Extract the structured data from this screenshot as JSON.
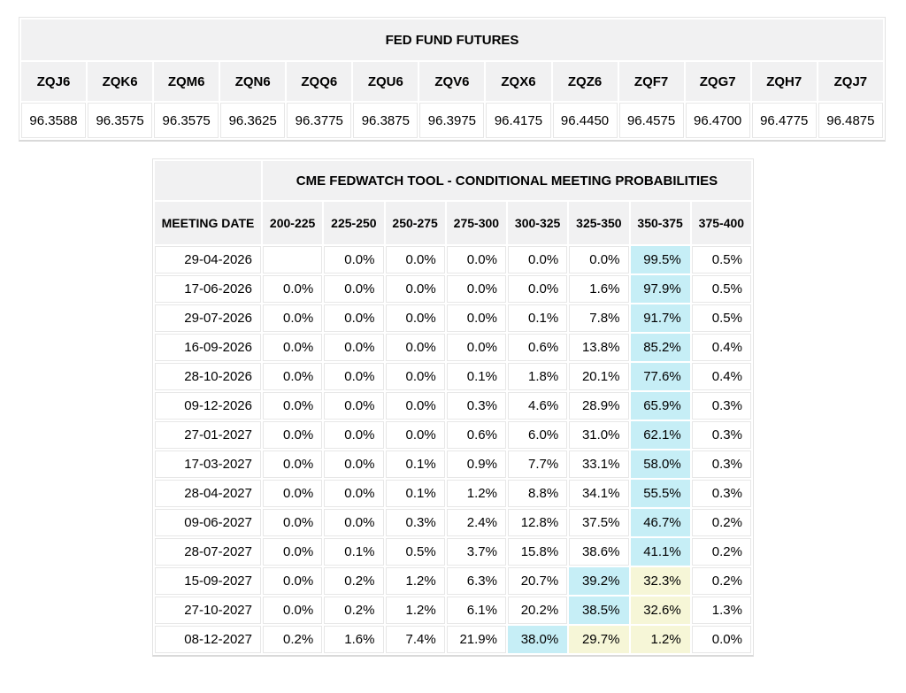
{
  "futures": {
    "title": "FED FUND FUTURES",
    "contracts": [
      "ZQJ6",
      "ZQK6",
      "ZQM6",
      "ZQN6",
      "ZQQ6",
      "ZQU6",
      "ZQV6",
      "ZQX6",
      "ZQZ6",
      "ZQF7",
      "ZQG7",
      "ZQH7",
      "ZQJ7"
    ],
    "prices": [
      "96.3588",
      "96.3575",
      "96.3575",
      "96.3625",
      "96.3775",
      "96.3875",
      "96.3975",
      "96.4175",
      "96.4450",
      "96.4575",
      "96.4700",
      "96.4775",
      "96.4875"
    ]
  },
  "fedwatch": {
    "title": "CME FEDWATCH TOOL - CONDITIONAL MEETING PROBABILITIES",
    "date_header": "MEETING DATE",
    "rate_headers": [
      "200-225",
      "225-250",
      "250-275",
      "275-300",
      "300-325",
      "325-350",
      "350-375",
      "375-400"
    ],
    "rows": [
      {
        "date": "29-04-2026",
        "values": [
          "",
          "0.0%",
          "0.0%",
          "0.0%",
          "0.0%",
          "0.0%",
          "99.5%",
          "0.5%"
        ],
        "cyan": [
          6
        ],
        "yellow": []
      },
      {
        "date": "17-06-2026",
        "values": [
          "0.0%",
          "0.0%",
          "0.0%",
          "0.0%",
          "0.0%",
          "1.6%",
          "97.9%",
          "0.5%"
        ],
        "cyan": [
          6
        ],
        "yellow": []
      },
      {
        "date": "29-07-2026",
        "values": [
          "0.0%",
          "0.0%",
          "0.0%",
          "0.0%",
          "0.1%",
          "7.8%",
          "91.7%",
          "0.5%"
        ],
        "cyan": [
          6
        ],
        "yellow": []
      },
      {
        "date": "16-09-2026",
        "values": [
          "0.0%",
          "0.0%",
          "0.0%",
          "0.0%",
          "0.6%",
          "13.8%",
          "85.2%",
          "0.4%"
        ],
        "cyan": [
          6
        ],
        "yellow": []
      },
      {
        "date": "28-10-2026",
        "values": [
          "0.0%",
          "0.0%",
          "0.0%",
          "0.1%",
          "1.8%",
          "20.1%",
          "77.6%",
          "0.4%"
        ],
        "cyan": [
          6
        ],
        "yellow": []
      },
      {
        "date": "09-12-2026",
        "values": [
          "0.0%",
          "0.0%",
          "0.0%",
          "0.3%",
          "4.6%",
          "28.9%",
          "65.9%",
          "0.3%"
        ],
        "cyan": [
          6
        ],
        "yellow": []
      },
      {
        "date": "27-01-2027",
        "values": [
          "0.0%",
          "0.0%",
          "0.0%",
          "0.6%",
          "6.0%",
          "31.0%",
          "62.1%",
          "0.3%"
        ],
        "cyan": [
          6
        ],
        "yellow": []
      },
      {
        "date": "17-03-2027",
        "values": [
          "0.0%",
          "0.0%",
          "0.1%",
          "0.9%",
          "7.7%",
          "33.1%",
          "58.0%",
          "0.3%"
        ],
        "cyan": [
          6
        ],
        "yellow": []
      },
      {
        "date": "28-04-2027",
        "values": [
          "0.0%",
          "0.0%",
          "0.1%",
          "1.2%",
          "8.8%",
          "34.1%",
          "55.5%",
          "0.3%"
        ],
        "cyan": [
          6
        ],
        "yellow": []
      },
      {
        "date": "09-06-2027",
        "values": [
          "0.0%",
          "0.0%",
          "0.3%",
          "2.4%",
          "12.8%",
          "37.5%",
          "46.7%",
          "0.2%"
        ],
        "cyan": [
          6
        ],
        "yellow": []
      },
      {
        "date": "28-07-2027",
        "values": [
          "0.0%",
          "0.1%",
          "0.5%",
          "3.7%",
          "15.8%",
          "38.6%",
          "41.1%",
          "0.2%"
        ],
        "cyan": [
          6
        ],
        "yellow": []
      },
      {
        "date": "15-09-2027",
        "values": [
          "0.0%",
          "0.2%",
          "1.2%",
          "6.3%",
          "20.7%",
          "39.2%",
          "32.3%",
          "0.2%"
        ],
        "cyan": [
          5
        ],
        "yellow": [
          6
        ]
      },
      {
        "date": "27-10-2027",
        "values": [
          "0.0%",
          "0.2%",
          "1.2%",
          "6.1%",
          "20.2%",
          "38.5%",
          "32.6%",
          "1.3%"
        ],
        "cyan": [
          5
        ],
        "yellow": [
          6
        ]
      },
      {
        "date": "08-12-2027",
        "values": [
          "0.2%",
          "1.6%",
          "7.4%",
          "21.9%",
          "38.0%",
          "29.7%",
          "1.2%",
          "0.0%"
        ],
        "cyan": [
          4
        ],
        "yellow": [
          5,
          6
        ]
      }
    ]
  },
  "colors": {
    "header_bg": "#f1f1f2",
    "highlight_cyan": "#c6eef6",
    "highlight_yellow": "#f6f6d7"
  }
}
